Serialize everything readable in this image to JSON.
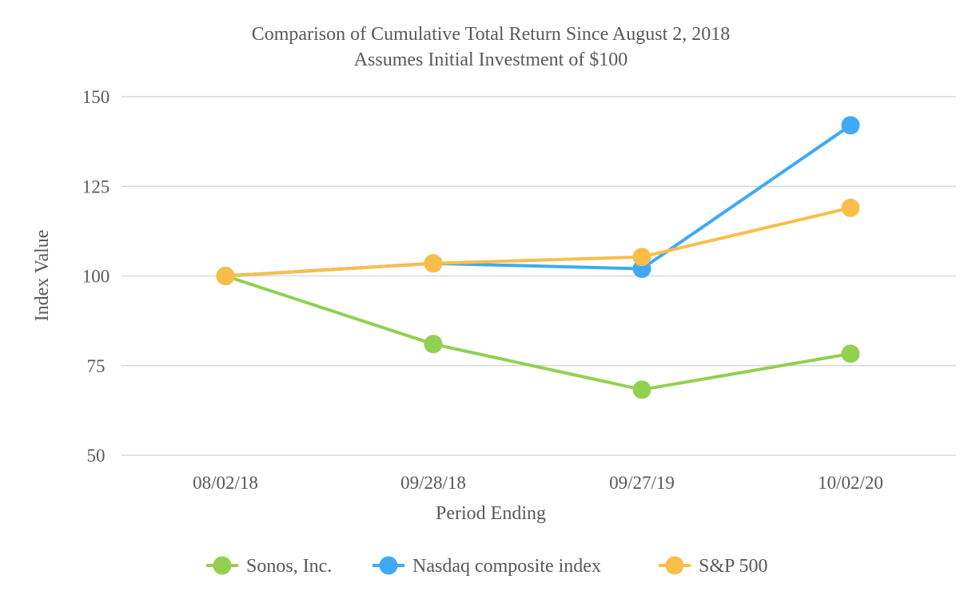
{
  "chart_data": {
    "type": "line",
    "title": "Comparison of Cumulative Total Return Since August 2, 2018",
    "subtitle": "Assumes Initial Investment of $100",
    "xlabel": "Period Ending",
    "ylabel": "Index Value",
    "categories": [
      "08/02/18",
      "09/28/18",
      "09/27/19",
      "10/02/20"
    ],
    "ylim": [
      50,
      150
    ],
    "yticks": [
      50,
      75,
      100,
      125,
      150
    ],
    "grid": true,
    "legend_position": "bottom",
    "series": [
      {
        "name": "Sonos, Inc.",
        "color": "#92d050",
        "values": [
          100,
          81,
          68.3,
          78.3
        ]
      },
      {
        "name": "Nasdaq composite index",
        "color": "#3fa9f5",
        "values": [
          100,
          103.5,
          102,
          142
        ]
      },
      {
        "name": "S&P 500",
        "color": "#f9be4a",
        "values": [
          100,
          103.5,
          105.3,
          119
        ]
      }
    ]
  }
}
